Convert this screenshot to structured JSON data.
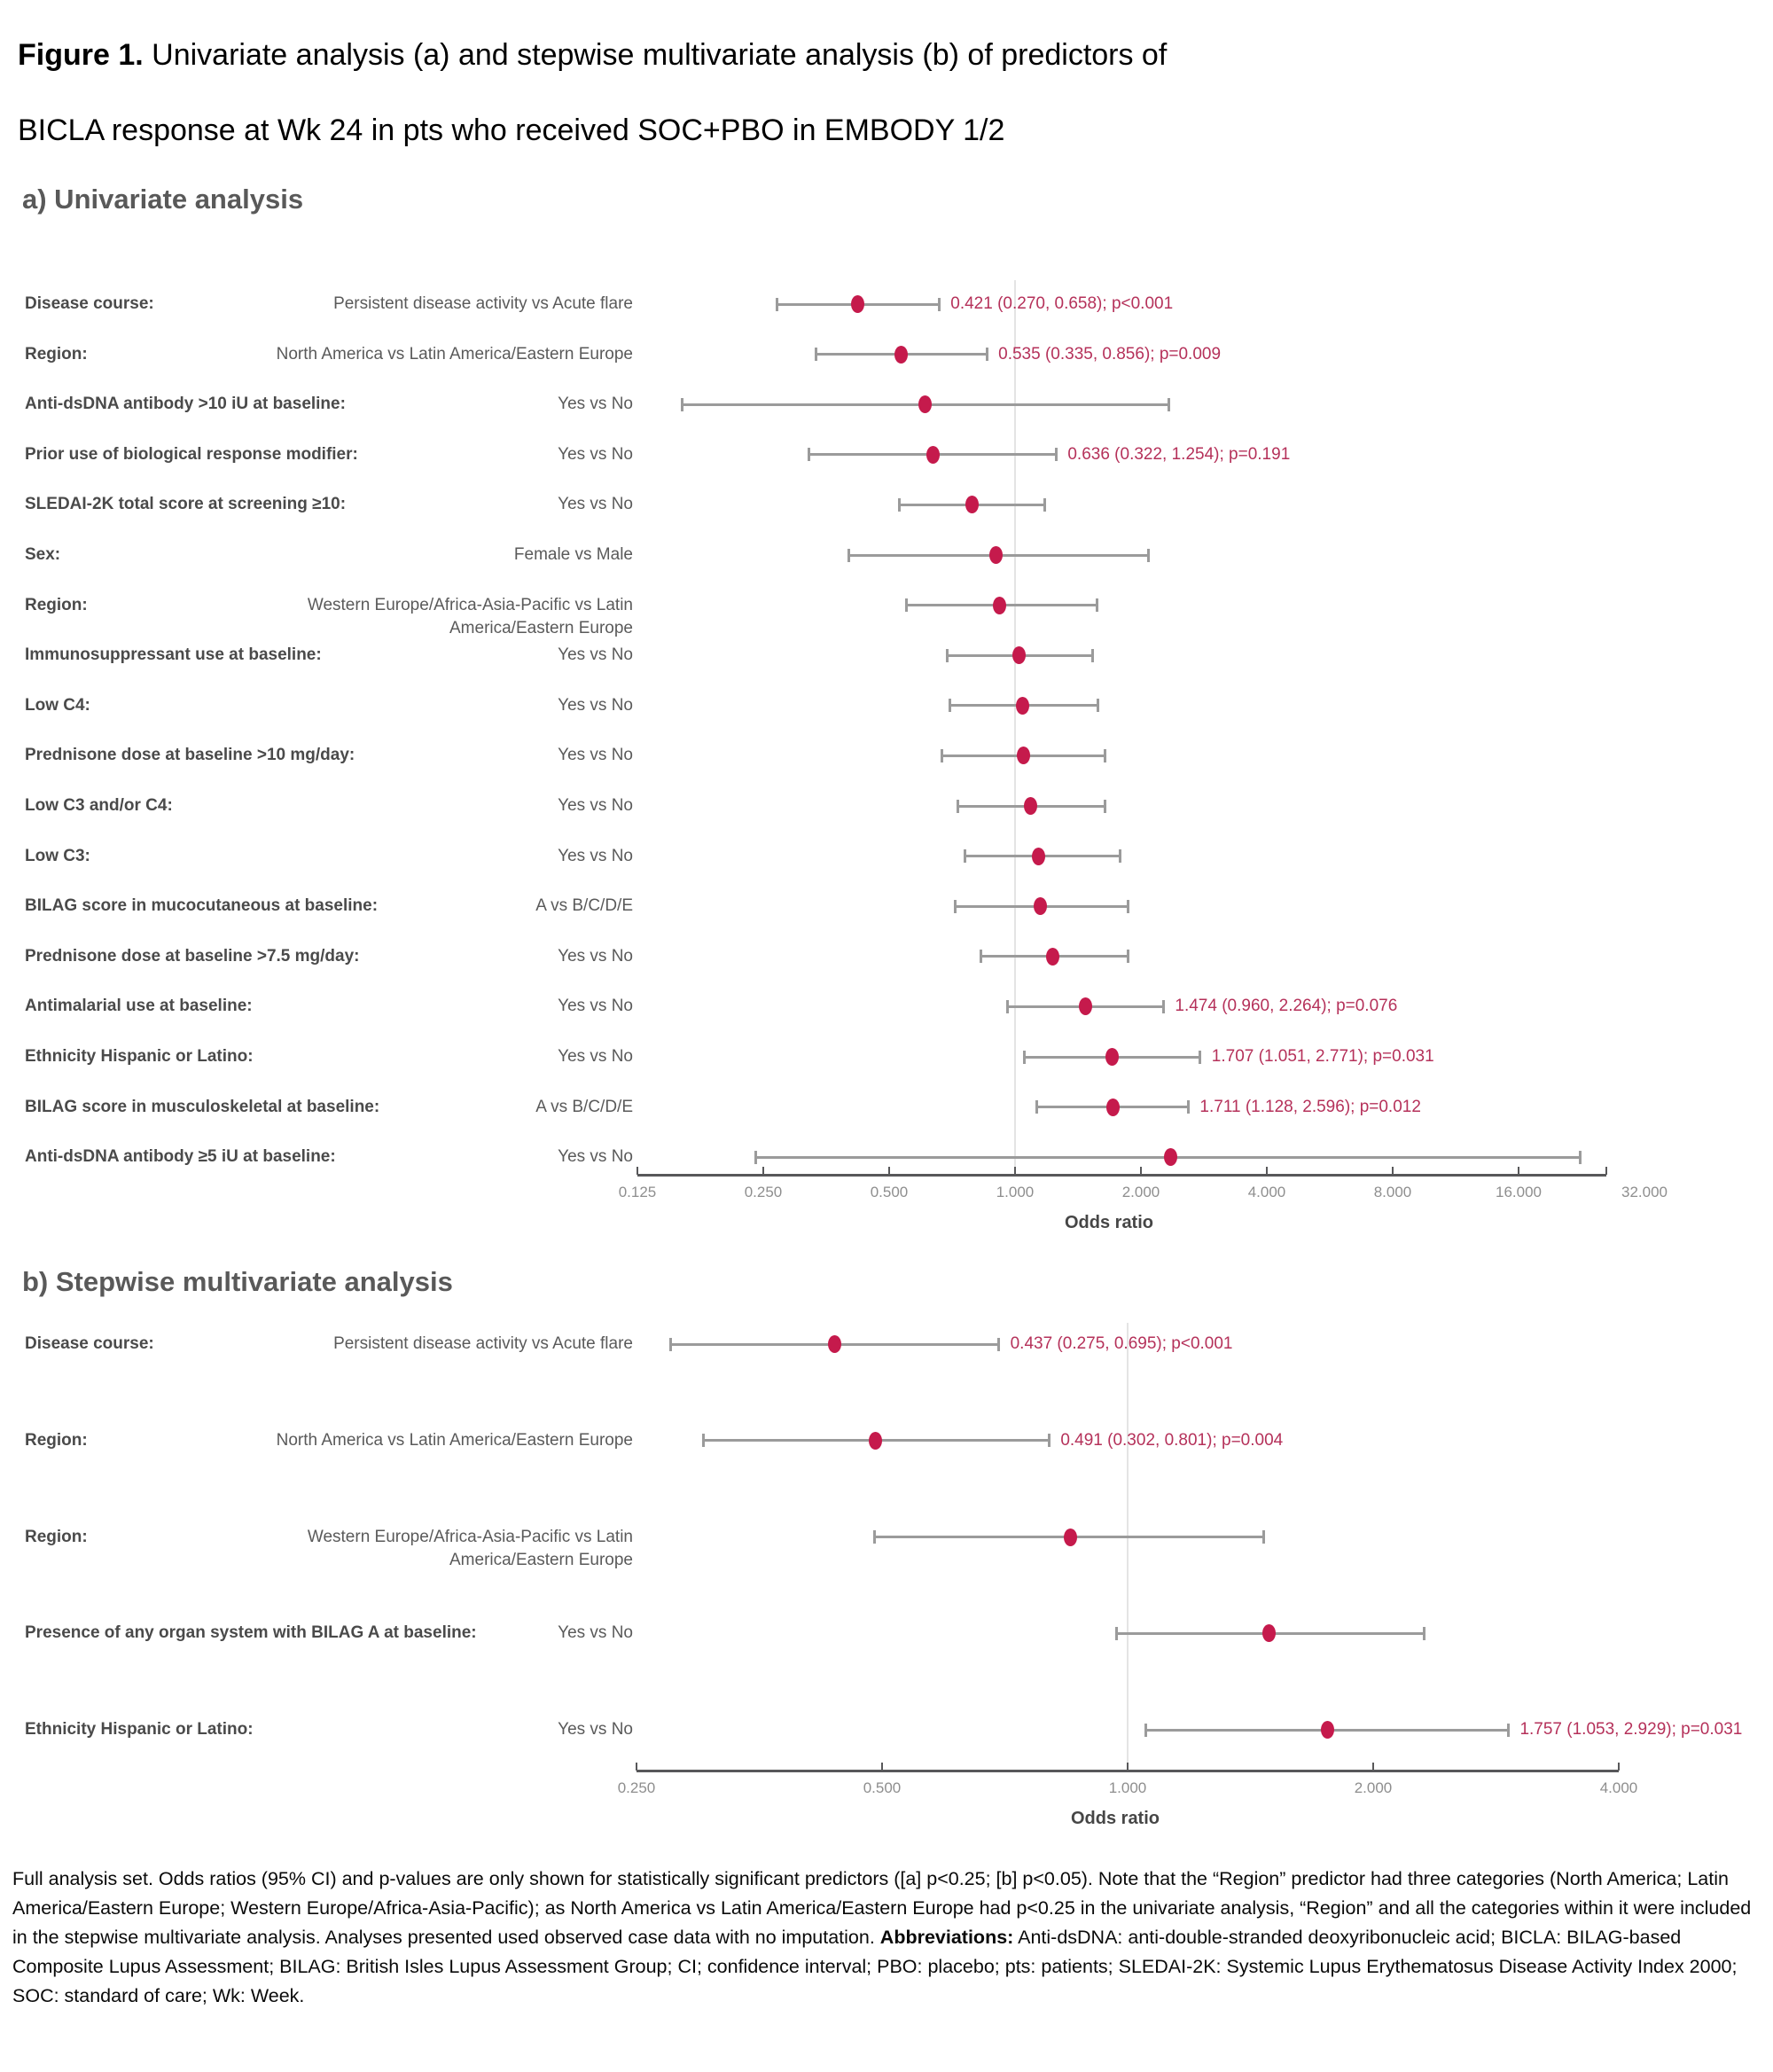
{
  "title": {
    "prefix": "Figure 1.",
    "line1_rest": " Univariate analysis (a) and stepwise multivariate analysis (b) of predictors of",
    "line2": "BICLA response at Wk 24 in pts who received SOC+PBO in EMBODY 1/2"
  },
  "chart_data": [
    {
      "id": "univariate",
      "type": "forest",
      "heading": "a) Univariate analysis",
      "xlabel": "Odds ratio",
      "x_scale": "log2",
      "xlim": [
        0.125,
        32
      ],
      "reference_line": 1.0,
      "axis_ticks": [
        0.125,
        0.25,
        0.5,
        1,
        2,
        4,
        8,
        16,
        32
      ],
      "tick_labels": [
        "0.125",
        "0.250",
        "0.500",
        "1.000",
        "2.000",
        "4.000",
        "8.000",
        "16.000",
        "32.000"
      ],
      "rows": [
        {
          "predictor": "Disease course:",
          "contrast_lines": [
            "Persistent disease activity vs Acute flare"
          ],
          "or": 0.421,
          "ci_low": 0.27,
          "ci_high": 0.658,
          "annotation": "0.421 (0.270, 0.658); p<0.001"
        },
        {
          "predictor": "Region:",
          "contrast_lines": [
            "North America vs Latin America/Eastern Europe"
          ],
          "or": 0.535,
          "ci_low": 0.335,
          "ci_high": 0.856,
          "annotation": "0.535 (0.335, 0.856); p=0.009"
        },
        {
          "predictor": "Anti-dsDNA antibody >10 iU at baseline:",
          "contrast_lines": [
            "Yes vs No"
          ],
          "or": 0.61,
          "ci_low": 0.16,
          "ci_high": 2.33,
          "annotation": ""
        },
        {
          "predictor": "Prior use of biological response modifier:",
          "contrast_lines": [
            "Yes vs No"
          ],
          "or": 0.636,
          "ci_low": 0.322,
          "ci_high": 1.254,
          "annotation": "0.636 (0.322, 1.254); p=0.191"
        },
        {
          "predictor": "SLEDAI-2K total score at screening ≥10:",
          "contrast_lines": [
            "Yes vs No"
          ],
          "or": 0.79,
          "ci_low": 0.53,
          "ci_high": 1.18,
          "annotation": ""
        },
        {
          "predictor": "Sex:",
          "contrast_lines": [
            "Female vs Male"
          ],
          "or": 0.9,
          "ci_low": 0.4,
          "ci_high": 2.08,
          "annotation": ""
        },
        {
          "predictor": "Region:",
          "contrast_lines": [
            "Western Europe/Africa-Asia-Pacific vs Latin",
            "America/Eastern Europe"
          ],
          "or": 0.92,
          "ci_low": 0.55,
          "ci_high": 1.57,
          "annotation": ""
        },
        {
          "predictor": "Immunosuppressant use at baseline:",
          "contrast_lines": [
            "Yes vs No"
          ],
          "or": 1.02,
          "ci_low": 0.69,
          "ci_high": 1.53,
          "annotation": ""
        },
        {
          "predictor": "Low C4:",
          "contrast_lines": [
            "Yes vs No"
          ],
          "or": 1.04,
          "ci_low": 0.7,
          "ci_high": 1.58,
          "annotation": ""
        },
        {
          "predictor": "Prednisone dose at baseline >10 mg/day:",
          "contrast_lines": [
            "Yes vs No"
          ],
          "or": 1.05,
          "ci_low": 0.67,
          "ci_high": 1.64,
          "annotation": ""
        },
        {
          "predictor": "Low C3 and/or C4:",
          "contrast_lines": [
            "Yes vs No"
          ],
          "or": 1.09,
          "ci_low": 0.73,
          "ci_high": 1.64,
          "annotation": ""
        },
        {
          "predictor": "Low C3:",
          "contrast_lines": [
            "Yes vs No"
          ],
          "or": 1.14,
          "ci_low": 0.76,
          "ci_high": 1.78,
          "annotation": ""
        },
        {
          "predictor": "BILAG score in mucocutaneous at baseline:",
          "contrast_lines": [
            "A vs B/C/D/E"
          ],
          "or": 1.15,
          "ci_low": 0.72,
          "ci_high": 1.86,
          "annotation": ""
        },
        {
          "predictor": "Prednisone dose at baseline >7.5 mg/day:",
          "contrast_lines": [
            "Yes vs No"
          ],
          "or": 1.23,
          "ci_low": 0.83,
          "ci_high": 1.86,
          "annotation": ""
        },
        {
          "predictor": "Antimalarial use at baseline:",
          "contrast_lines": [
            "Yes vs No"
          ],
          "or": 1.474,
          "ci_low": 0.96,
          "ci_high": 2.264,
          "annotation": "1.474 (0.960, 2.264); p=0.076"
        },
        {
          "predictor": "Ethnicity Hispanic or Latino:",
          "contrast_lines": [
            "Yes vs No"
          ],
          "or": 1.707,
          "ci_low": 1.051,
          "ci_high": 2.771,
          "annotation": "1.707 (1.051, 2.771); p=0.031"
        },
        {
          "predictor": "BILAG score in musculoskeletal at baseline:",
          "contrast_lines": [
            "A vs B/C/D/E"
          ],
          "or": 1.711,
          "ci_low": 1.128,
          "ci_high": 2.596,
          "annotation": "1.711 (1.128, 2.596); p=0.012"
        },
        {
          "predictor": "Anti-dsDNA antibody ≥5 iU at baseline:",
          "contrast_lines": [
            "Yes vs No"
          ],
          "or": 2.35,
          "ci_low": 0.24,
          "ci_high": 22.5,
          "annotation": ""
        }
      ]
    },
    {
      "id": "multivariate",
      "type": "forest",
      "heading": "b) Stepwise multivariate analysis",
      "xlabel": "Odds ratio",
      "x_scale": "log2",
      "xlim": [
        0.25,
        4
      ],
      "reference_line": 1.0,
      "axis_ticks": [
        0.25,
        0.5,
        1,
        2,
        4
      ],
      "tick_labels": [
        "0.250",
        "0.500",
        "1.000",
        "2.000",
        "4.000"
      ],
      "rows": [
        {
          "predictor": "Disease course:",
          "contrast_lines": [
            "Persistent disease activity vs Acute flare"
          ],
          "or": 0.437,
          "ci_low": 0.275,
          "ci_high": 0.695,
          "annotation": "0.437 (0.275, 0.695); p<0.001"
        },
        {
          "predictor": "Region:",
          "contrast_lines": [
            "North America vs Latin America/Eastern Europe"
          ],
          "or": 0.491,
          "ci_low": 0.302,
          "ci_high": 0.801,
          "annotation": "0.491 (0.302, 0.801); p=0.004"
        },
        {
          "predictor": "Region:",
          "contrast_lines": [
            "Western Europe/Africa-Asia-Pacific vs Latin",
            "America/Eastern Europe"
          ],
          "or": 0.85,
          "ci_low": 0.49,
          "ci_high": 1.47,
          "annotation": ""
        },
        {
          "predictor": "Presence of any organ system with BILAG A at baseline:",
          "contrast_lines": [
            "Yes vs No"
          ],
          "or": 1.49,
          "ci_low": 0.97,
          "ci_high": 2.31,
          "annotation": ""
        },
        {
          "predictor": "Ethnicity Hispanic or Latino:",
          "contrast_lines": [
            "Yes vs No"
          ],
          "or": 1.757,
          "ci_low": 1.053,
          "ci_high": 2.929,
          "annotation": "1.757 (1.053, 2.929); p=0.031"
        }
      ]
    }
  ],
  "footer": {
    "part1": "Full analysis set. Odds ratios (95% CI) and p-values are only shown for statistically significant predictors ([a] p<0.25; [b] p<0.05). Note that the “Region” predictor had three categories (North America; Latin America/Eastern Europe; Western Europe/Africa-Asia-Pacific); as North America vs Latin America/Eastern Europe had p<0.25 in the univariate analysis, “Region” and all the categories within it were included in the stepwise multivariate analysis. Analyses presented used observed case data with no imputation. ",
    "abbreviations_label": "Abbreviations:",
    "part2": " Anti-dsDNA: anti-double-stranded deoxyribonucleic acid; BICLA: BILAG-based Composite Lupus Assessment; BILAG: British Isles Lupus Assessment Group; CI; confidence interval; PBO: placebo; pts: patients; SLEDAI-2K: Systemic Lupus Erythematosus Disease Activity Index 2000; SOC: standard of care; Wk: Week."
  },
  "colors": {
    "point": "#c51a4c",
    "annotation_text": "#b5315a",
    "whisker": "#9b9b9b",
    "axis_line": "#58585a",
    "tick_label": "#8e8e8e",
    "reference_line": "#e4e4e4",
    "predictor_text": "#4a4a4a",
    "contrast_text": "#5a5a5a",
    "heading_text": "#595959"
  }
}
